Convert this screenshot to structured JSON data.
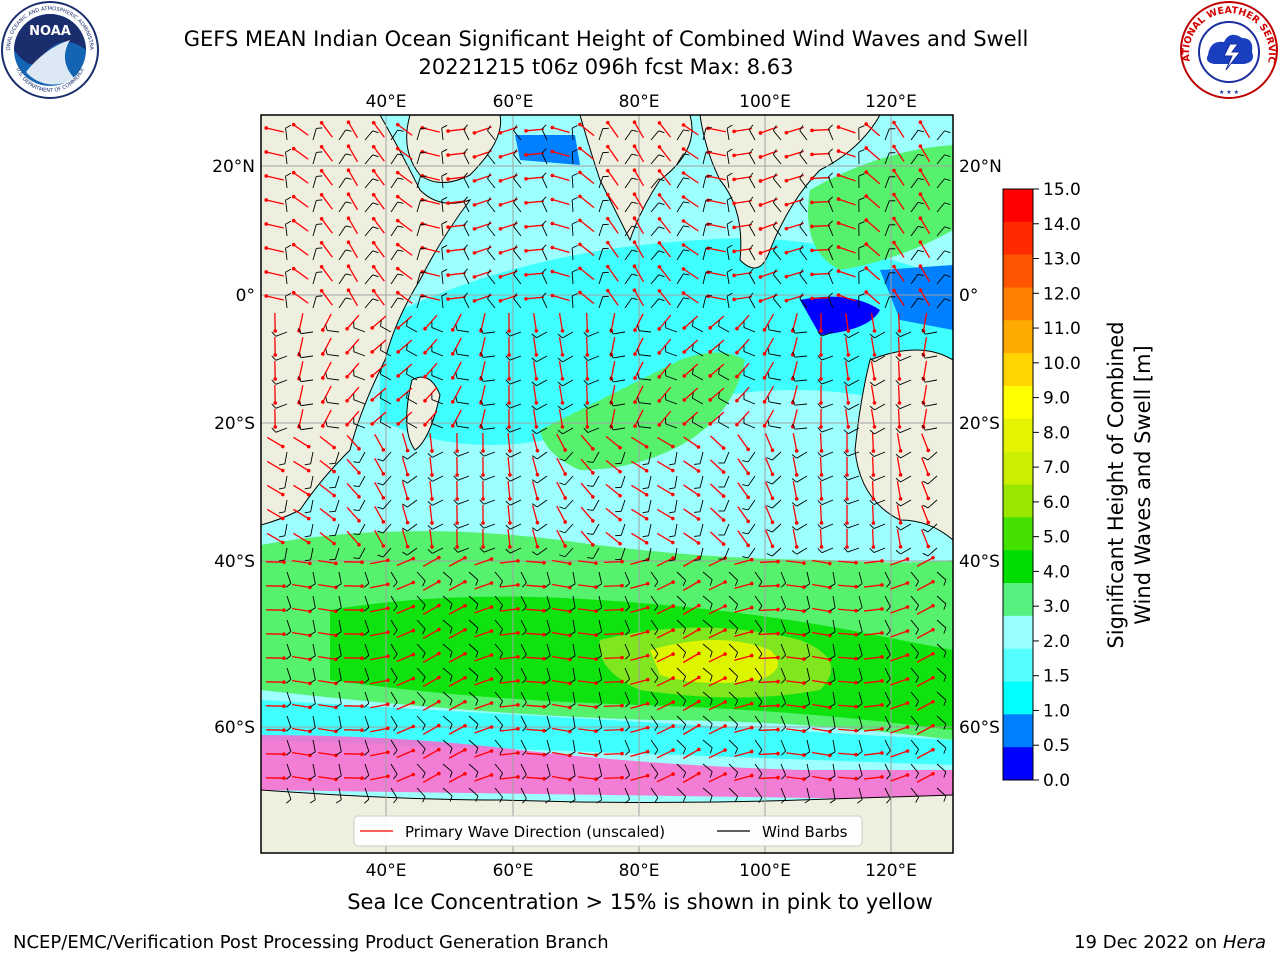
{
  "header": {
    "title_line1": "GEFS MEAN Indian Ocean Significant Height of Combined Wind Waves and Swell",
    "title_line2": "20221215 t06z 096h fcst   Max: 8.63"
  },
  "logos": {
    "noaa_text": "NOAA",
    "noaa_ring_top": "NATIONAL OCEANIC AND ATMOSPHERIC ADMINISTRATION",
    "noaa_ring_bottom": "U.S. DEPARTMENT OF COMMERCE",
    "nws_ring": "NATIONAL WEATHER SERVICE"
  },
  "map": {
    "lon_ticks": [
      "40°E",
      "60°E",
      "80°E",
      "100°E",
      "120°E"
    ],
    "lat_ticks_left": [
      "20°N",
      "0°",
      "20°S",
      "40°S",
      "60°S"
    ],
    "lat_ticks_right": [
      "20°N",
      "0°",
      "20°S",
      "40°S",
      "60°S"
    ],
    "colors": {
      "ocean_low": "#0000ff",
      "ocean_0_5": "#0080ff",
      "ocean_1_0": "#00ffff",
      "ocean_1_5": "#3fffff",
      "ocean_2_0": "#9effff",
      "ocean_3_0": "#56f26e",
      "ocean_4_0": "#0fe30f",
      "ocean_5_0": "#7fe61f",
      "ocean_7_0": "#ddf500",
      "land": "#efefdf",
      "ice_pink": "#ff66cc",
      "wave_arrow": "#ff0000",
      "wind_barb": "#000000"
    },
    "legend": {
      "wave_label": "Primary Wave Direction (unscaled)",
      "wind_label": "Wind Barbs"
    }
  },
  "colorbar": {
    "ticks": [
      "15.0",
      "14.0",
      "13.0",
      "12.0",
      "11.0",
      "10.0",
      "9.0",
      "8.0",
      "7.0",
      "6.0",
      "5.0",
      "4.0",
      "3.0",
      "2.0",
      "1.5",
      "1.0",
      "0.5",
      "0.0"
    ],
    "colors": [
      "#ff0000",
      "#ff2a00",
      "#ff5500",
      "#ff7f00",
      "#ffaa00",
      "#ffd400",
      "#ffff00",
      "#e5f200",
      "#ccee00",
      "#99e600",
      "#44e000",
      "#00dd00",
      "#55f080",
      "#99ffff",
      "#55ffff",
      "#00ffff",
      "#0080ff",
      "#0000ff"
    ],
    "label_line1": "Significant Height of Combined",
    "label_line2": "Wind Waves and Swell [m]"
  },
  "caption": "Sea Ice Concentration > 15% is shown in pink to yellow",
  "footer": {
    "left": "NCEP/EMC/Verification Post Processing Product Generation Branch",
    "right_date": "19 Dec 2022 on ",
    "right_machine": "Hera"
  }
}
